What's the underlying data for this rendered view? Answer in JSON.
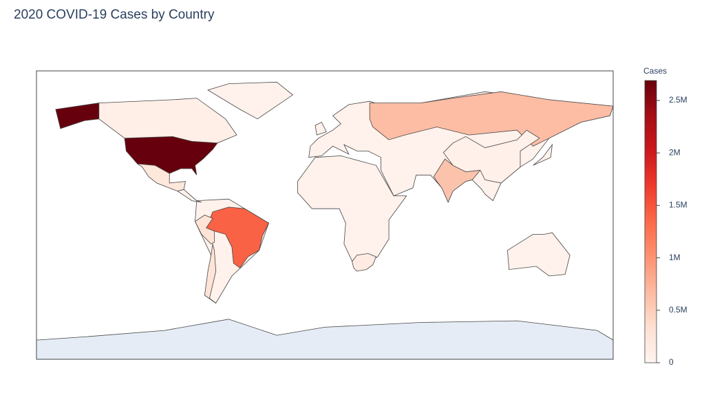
{
  "chart_data": {
    "type": "choropleth",
    "title": "2020 COVID-19 Cases by Country",
    "values": [
      2690000,
      1400000,
      650000,
      600000,
      290000,
      280000,
      230000,
      160000,
      100000,
      83000
    ],
    "colorscale": [
      "#fff5f0",
      "#fee0d2",
      "#fcbba1",
      "#fc9272",
      "#fb6a4a",
      "#ef3b2c",
      "#cb181d",
      "#a50f15",
      "#67000d"
    ],
    "colorbar_title": "Cases",
    "zlim": [
      0,
      2690000
    ],
    "zticks": [
      0,
      {
        "value": 500000,
        "label": "0.5M"
      },
      {
        "value": 1000000,
        "label": "1M"
      },
      {
        "value": 1500000,
        "label": "1.5M"
      },
      {
        "value": 2000000,
        "label": "2M"
      },
      {
        "value": 2500000,
        "label": "2.5M"
      }
    ]
  }
}
